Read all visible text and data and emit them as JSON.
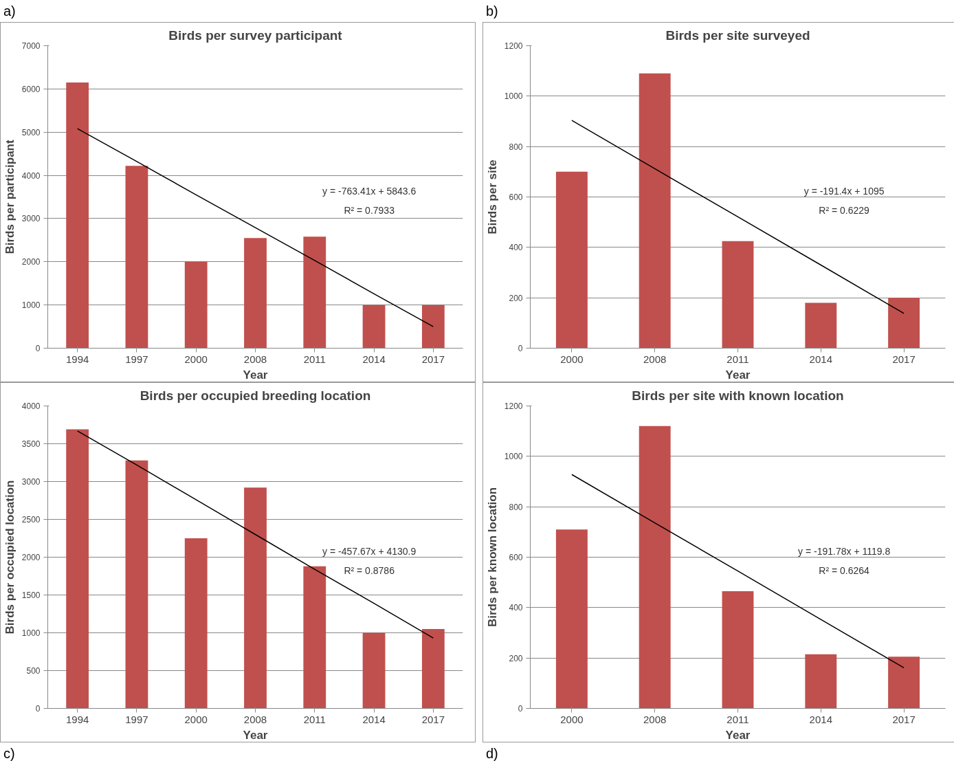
{
  "chart_data": [
    {
      "type": "bar",
      "title": "Birds per survey participant",
      "xlabel": "Year",
      "ylabel": "Birds per participant",
      "categories": [
        "1994",
        "1997",
        "2000",
        "2008",
        "2011",
        "2014",
        "2017"
      ],
      "ylim": [
        0,
        7000
      ],
      "yticks": [
        0,
        1000,
        2000,
        3000,
        4000,
        5000,
        6000,
        7000
      ],
      "grid": "y",
      "series": [
        {
          "color": "#c0504d",
          "values": [
            6150,
            4220,
            2000,
            2550,
            2580,
            1000,
            1000
          ]
        },
        {
          "type": "line",
          "color": "#000000",
          "values": [
            5080,
            4320,
            3550,
            2790,
            2030,
            1260,
            500
          ]
        }
      ],
      "annotations": [
        "a)",
        "y = -763.41x + 5843.6",
        "R² = 0.7933"
      ]
    },
    {
      "type": "bar",
      "title": "Birds per site surveyed",
      "xlabel": "Year",
      "ylabel": "Birds per site",
      "categories": [
        "2000",
        "2008",
        "2011",
        "2014",
        "2017"
      ],
      "ylim": [
        0,
        1200
      ],
      "yticks": [
        0,
        200,
        400,
        600,
        800,
        1000,
        1200
      ],
      "grid": "y",
      "series": [
        {
          "color": "#c0504d",
          "values": [
            700,
            1090,
            425,
            180,
            200
          ]
        },
        {
          "type": "line",
          "color": "#000000",
          "values": [
            904,
            712,
            521,
            330,
            138
          ]
        }
      ],
      "annotations": [
        "b)",
        "y = -191.4x + 1095",
        "R² = 0.6229"
      ]
    },
    {
      "type": "bar",
      "title": "Birds per occupied breeding location",
      "xlabel": "Year",
      "ylabel": "Birds per occupied location",
      "categories": [
        "1994",
        "1997",
        "2000",
        "2008",
        "2011",
        "2014",
        "2017"
      ],
      "ylim": [
        0,
        4000
      ],
      "yticks": [
        0,
        500,
        1000,
        1500,
        2000,
        2500,
        3000,
        3500,
        4000
      ],
      "grid": "y",
      "series": [
        {
          "color": "#c0504d",
          "values": [
            3690,
            3280,
            2250,
            2920,
            1880,
            1000,
            1050
          ]
        },
        {
          "type": "line",
          "color": "#000000",
          "values": [
            3670,
            3220,
            2760,
            2300,
            1840,
            1390,
            930
          ]
        }
      ],
      "annotations": [
        "c)",
        "y = -457.67x + 4130.9",
        "R² = 0.8786"
      ]
    },
    {
      "type": "bar",
      "title": "Birds per site with known location",
      "xlabel": "Year",
      "ylabel": "Birds per known location",
      "categories": [
        "2000",
        "2008",
        "2011",
        "2014",
        "2017"
      ],
      "ylim": [
        0,
        1200
      ],
      "yticks": [
        0,
        200,
        400,
        600,
        800,
        1000,
        1200
      ],
      "grid": "y",
      "series": [
        {
          "color": "#c0504d",
          "values": [
            710,
            1120,
            465,
            215,
            205
          ]
        },
        {
          "type": "line",
          "color": "#000000",
          "values": [
            928,
            736,
            545,
            353,
            161
          ]
        }
      ],
      "annotations": [
        "d)",
        "y = -191.78x + 1119.8",
        "R² = 0.6264"
      ]
    }
  ]
}
